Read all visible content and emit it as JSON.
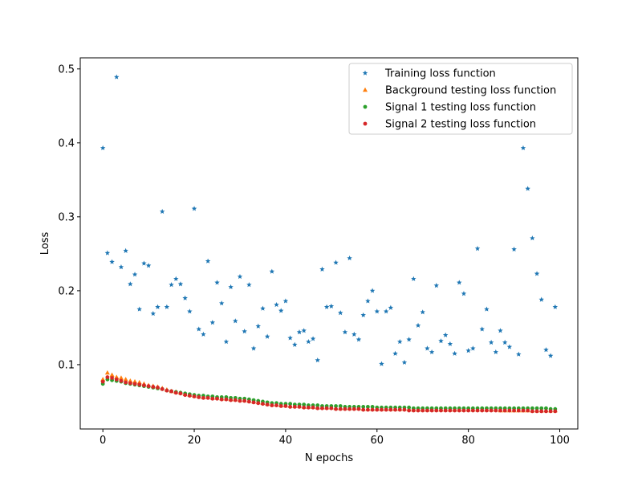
{
  "chart_data": {
    "type": "scatter",
    "title": "",
    "xlabel": "N epochs",
    "ylabel": "Loss",
    "xlim": [
      -4.95,
      103.95
    ],
    "ylim": [
      0.013,
      0.515
    ],
    "xticks": [
      0,
      20,
      40,
      60,
      80,
      100
    ],
    "yticks": [
      0.1,
      0.2,
      0.3,
      0.4,
      0.5
    ],
    "xtick_labels": [
      "0",
      "20",
      "40",
      "60",
      "80",
      "100"
    ],
    "ytick_labels": [
      "0.1",
      "0.2",
      "0.3",
      "0.4",
      "0.5"
    ],
    "grid": false,
    "legend_position": "upper right",
    "series": [
      {
        "name": "Training loss function",
        "marker": "star",
        "color": "#1f77b4",
        "x": [
          0,
          1,
          2,
          3,
          4,
          5,
          6,
          7,
          8,
          9,
          10,
          11,
          12,
          13,
          14,
          15,
          16,
          17,
          18,
          19,
          20,
          21,
          22,
          23,
          24,
          25,
          26,
          27,
          28,
          29,
          30,
          31,
          32,
          33,
          34,
          35,
          36,
          37,
          38,
          39,
          40,
          41,
          42,
          43,
          44,
          45,
          46,
          47,
          48,
          49,
          50,
          51,
          52,
          53,
          54,
          55,
          56,
          57,
          58,
          59,
          60,
          61,
          62,
          63,
          64,
          65,
          66,
          67,
          68,
          69,
          70,
          71,
          72,
          73,
          74,
          75,
          76,
          77,
          78,
          79,
          80,
          81,
          82,
          83,
          84,
          85,
          86,
          87,
          88,
          89,
          90,
          91,
          92,
          93,
          94,
          95,
          96,
          97,
          98,
          99
        ],
        "y": [
          0.393,
          0.251,
          0.239,
          0.489,
          0.232,
          0.254,
          0.209,
          0.222,
          0.175,
          0.237,
          0.234,
          0.169,
          0.178,
          0.307,
          0.178,
          0.208,
          0.216,
          0.209,
          0.19,
          0.172,
          0.311,
          0.148,
          0.141,
          0.24,
          0.157,
          0.211,
          0.183,
          0.131,
          0.205,
          0.159,
          0.219,
          0.145,
          0.208,
          0.122,
          0.152,
          0.176,
          0.138,
          0.226,
          0.181,
          0.173,
          0.186,
          0.136,
          0.127,
          0.144,
          0.146,
          0.131,
          0.135,
          0.106,
          0.229,
          0.178,
          0.179,
          0.238,
          0.17,
          0.144,
          0.244,
          0.141,
          0.134,
          0.167,
          0.186,
          0.2,
          0.172,
          0.101,
          0.172,
          0.177,
          0.115,
          0.131,
          0.103,
          0.134,
          0.216,
          0.153,
          0.171,
          0.122,
          0.117,
          0.207,
          0.132,
          0.14,
          0.128,
          0.115,
          0.211,
          0.196,
          0.119,
          0.122,
          0.257,
          0.148,
          0.175,
          0.13,
          0.117,
          0.146,
          0.13,
          0.124,
          0.256,
          0.114,
          0.393,
          0.338,
          0.271,
          0.223,
          0.188,
          0.12,
          0.112,
          0.178
        ]
      },
      {
        "name": "Background testing loss function",
        "marker": "triangle",
        "color": "#ff7f0e",
        "x": [
          0,
          1,
          2,
          3,
          4,
          5,
          6,
          7,
          8,
          9,
          10,
          11,
          12,
          13,
          14,
          15,
          16,
          17,
          18,
          19,
          20,
          21,
          22,
          23,
          24,
          25,
          26,
          27,
          28,
          29,
          30,
          31,
          32,
          33,
          34,
          35,
          36,
          37,
          38,
          39,
          40,
          41,
          42,
          43,
          44,
          45,
          46,
          47,
          48,
          49,
          50,
          51,
          52,
          53,
          54,
          55,
          56,
          57,
          58,
          59,
          60,
          61,
          62,
          63,
          64,
          65,
          66,
          67,
          68,
          69,
          70,
          71,
          72,
          73,
          74,
          75,
          76,
          77,
          78,
          79,
          80,
          81,
          82,
          83,
          84,
          85,
          86,
          87,
          88,
          89,
          90,
          91,
          92,
          93,
          94,
          95,
          96,
          97,
          98,
          99
        ],
        "y": [
          0.08,
          0.089,
          0.086,
          0.083,
          0.082,
          0.08,
          0.078,
          0.077,
          0.076,
          0.074,
          0.072,
          0.071,
          0.07,
          0.068,
          0.066,
          0.064,
          0.063,
          0.062,
          0.06,
          0.059,
          0.058,
          0.057,
          0.056,
          0.056,
          0.055,
          0.055,
          0.054,
          0.054,
          0.053,
          0.053,
          0.052,
          0.052,
          0.051,
          0.05,
          0.049,
          0.048,
          0.047,
          0.046,
          0.046,
          0.045,
          0.045,
          0.044,
          0.044,
          0.044,
          0.043,
          0.043,
          0.043,
          0.042,
          0.042,
          0.042,
          0.042,
          0.041,
          0.041,
          0.041,
          0.041,
          0.041,
          0.041,
          0.04,
          0.04,
          0.04,
          0.04,
          0.04,
          0.04,
          0.04,
          0.04,
          0.04,
          0.04,
          0.04,
          0.039,
          0.039,
          0.039,
          0.039,
          0.039,
          0.039,
          0.039,
          0.039,
          0.039,
          0.039,
          0.039,
          0.039,
          0.039,
          0.039,
          0.039,
          0.039,
          0.039,
          0.039,
          0.039,
          0.038,
          0.038,
          0.038,
          0.038,
          0.038,
          0.038,
          0.038,
          0.038,
          0.038,
          0.038,
          0.038,
          0.038,
          0.038
        ]
      },
      {
        "name": "Signal 1 testing loss function",
        "marker": "circle",
        "color": "#2ca02c",
        "x": [
          0,
          1,
          2,
          3,
          4,
          5,
          6,
          7,
          8,
          9,
          10,
          11,
          12,
          13,
          14,
          15,
          16,
          17,
          18,
          19,
          20,
          21,
          22,
          23,
          24,
          25,
          26,
          27,
          28,
          29,
          30,
          31,
          32,
          33,
          34,
          35,
          36,
          37,
          38,
          39,
          40,
          41,
          42,
          43,
          44,
          45,
          46,
          47,
          48,
          49,
          50,
          51,
          52,
          53,
          54,
          55,
          56,
          57,
          58,
          59,
          60,
          61,
          62,
          63,
          64,
          65,
          66,
          67,
          68,
          69,
          70,
          71,
          72,
          73,
          74,
          75,
          76,
          77,
          78,
          79,
          80,
          81,
          82,
          83,
          84,
          85,
          86,
          87,
          88,
          89,
          90,
          91,
          92,
          93,
          94,
          95,
          96,
          97,
          98,
          99
        ],
        "y": [
          0.074,
          0.08,
          0.079,
          0.078,
          0.077,
          0.075,
          0.074,
          0.073,
          0.072,
          0.071,
          0.07,
          0.069,
          0.068,
          0.067,
          0.065,
          0.064,
          0.063,
          0.062,
          0.061,
          0.06,
          0.059,
          0.058,
          0.058,
          0.057,
          0.057,
          0.056,
          0.056,
          0.056,
          0.055,
          0.055,
          0.054,
          0.054,
          0.053,
          0.052,
          0.051,
          0.05,
          0.049,
          0.048,
          0.048,
          0.047,
          0.047,
          0.047,
          0.046,
          0.046,
          0.046,
          0.045,
          0.045,
          0.045,
          0.044,
          0.044,
          0.044,
          0.044,
          0.044,
          0.043,
          0.043,
          0.043,
          0.043,
          0.043,
          0.043,
          0.043,
          0.042,
          0.042,
          0.042,
          0.042,
          0.042,
          0.042,
          0.042,
          0.042,
          0.041,
          0.041,
          0.041,
          0.041,
          0.041,
          0.041,
          0.041,
          0.041,
          0.041,
          0.041,
          0.041,
          0.041,
          0.041,
          0.041,
          0.041,
          0.041,
          0.041,
          0.041,
          0.041,
          0.041,
          0.041,
          0.041,
          0.041,
          0.041,
          0.041,
          0.041,
          0.041,
          0.041,
          0.041,
          0.041,
          0.04,
          0.04
        ]
      },
      {
        "name": "Signal 2 testing loss function",
        "marker": "circle",
        "color": "#d62728",
        "x": [
          0,
          1,
          2,
          3,
          4,
          5,
          6,
          7,
          8,
          9,
          10,
          11,
          12,
          13,
          14,
          15,
          16,
          17,
          18,
          19,
          20,
          21,
          22,
          23,
          24,
          25,
          26,
          27,
          28,
          29,
          30,
          31,
          32,
          33,
          34,
          35,
          36,
          37,
          38,
          39,
          40,
          41,
          42,
          43,
          44,
          45,
          46,
          47,
          48,
          49,
          50,
          51,
          52,
          53,
          54,
          55,
          56,
          57,
          58,
          59,
          60,
          61,
          62,
          63,
          64,
          65,
          66,
          67,
          68,
          69,
          70,
          71,
          72,
          73,
          74,
          75,
          76,
          77,
          78,
          79,
          80,
          81,
          82,
          83,
          84,
          85,
          86,
          87,
          88,
          89,
          90,
          91,
          92,
          93,
          94,
          95,
          96,
          97,
          98,
          99
        ],
        "y": [
          0.077,
          0.083,
          0.082,
          0.08,
          0.078,
          0.076,
          0.075,
          0.074,
          0.073,
          0.072,
          0.071,
          0.07,
          0.069,
          0.067,
          0.065,
          0.064,
          0.062,
          0.061,
          0.059,
          0.058,
          0.057,
          0.056,
          0.055,
          0.055,
          0.054,
          0.054,
          0.053,
          0.053,
          0.052,
          0.052,
          0.051,
          0.051,
          0.05,
          0.049,
          0.048,
          0.047,
          0.046,
          0.045,
          0.045,
          0.044,
          0.044,
          0.043,
          0.043,
          0.043,
          0.042,
          0.042,
          0.042,
          0.041,
          0.041,
          0.041,
          0.041,
          0.04,
          0.04,
          0.04,
          0.04,
          0.04,
          0.04,
          0.039,
          0.039,
          0.039,
          0.039,
          0.039,
          0.039,
          0.039,
          0.039,
          0.039,
          0.039,
          0.038,
          0.038,
          0.038,
          0.038,
          0.038,
          0.038,
          0.038,
          0.038,
          0.038,
          0.038,
          0.038,
          0.038,
          0.038,
          0.038,
          0.038,
          0.038,
          0.038,
          0.038,
          0.038,
          0.038,
          0.038,
          0.038,
          0.038,
          0.038,
          0.038,
          0.038,
          0.038,
          0.037,
          0.037,
          0.037,
          0.037,
          0.037,
          0.037
        ]
      }
    ]
  }
}
